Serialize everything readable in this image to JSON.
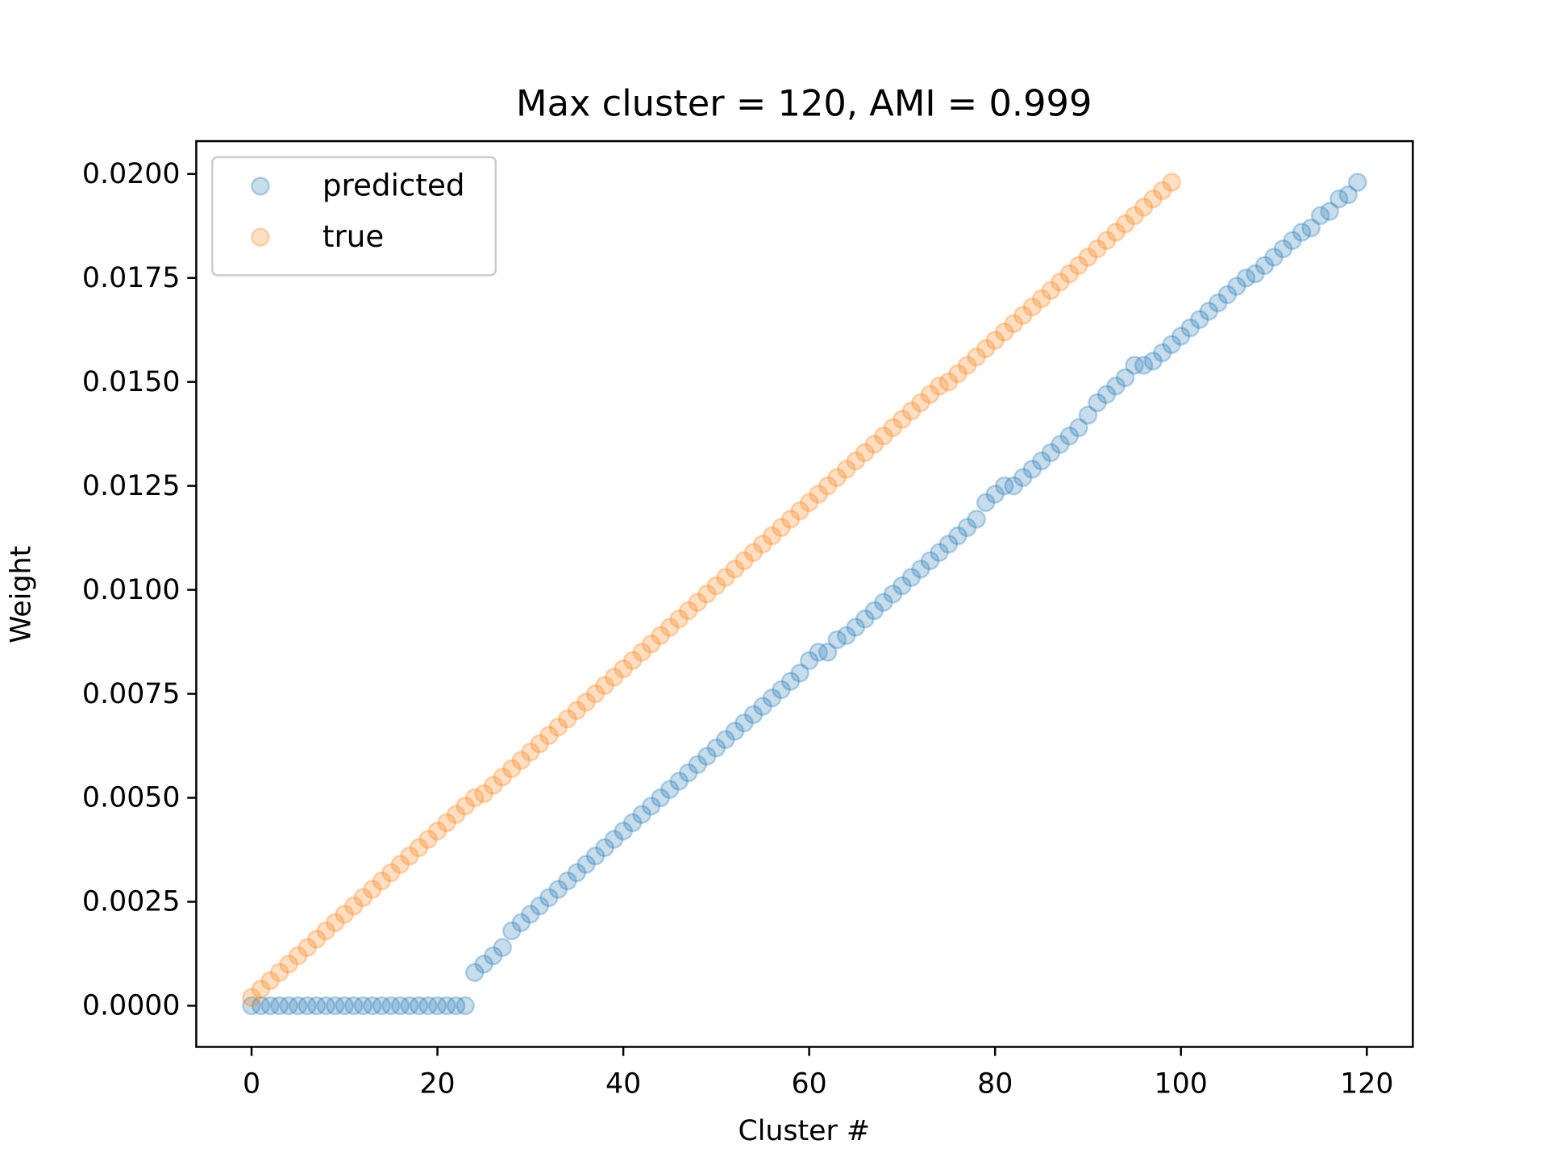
{
  "chart_data": {
    "type": "scatter",
    "title": "Max cluster = 120, AMI = 0.999",
    "x_label": "Cluster #",
    "y_label": "Weight",
    "xlim": [
      -5.95,
      124.95
    ],
    "ylim": [
      -0.00099,
      0.02079
    ],
    "xticks": [
      0,
      20,
      40,
      60,
      80,
      100,
      120
    ],
    "yticks": [
      {
        "value": 0,
        "label": "0.0000"
      },
      {
        "value": 0.0025,
        "label": "0.0025"
      },
      {
        "value": 0.005,
        "label": "0.0050"
      },
      {
        "value": 0.0075,
        "label": "0.0075"
      },
      {
        "value": 0.01,
        "label": "0.0100"
      },
      {
        "value": 0.0125,
        "label": "0.0125"
      },
      {
        "value": 0.015,
        "label": "0.0150"
      },
      {
        "value": 0.0175,
        "label": "0.0175"
      },
      {
        "value": 0.02,
        "label": "0.0200"
      }
    ],
    "grid": false,
    "legend": "upper left",
    "series": [
      {
        "name": "predicted",
        "color": "#1f77b4",
        "x": [
          0,
          1,
          2,
          3,
          4,
          5,
          6,
          7,
          8,
          9,
          10,
          11,
          12,
          13,
          14,
          15,
          16,
          17,
          18,
          19,
          20,
          21,
          22,
          23,
          24,
          25,
          26,
          27,
          28,
          29,
          30,
          31,
          32,
          33,
          34,
          35,
          36,
          37,
          38,
          39,
          40,
          41,
          42,
          43,
          44,
          45,
          46,
          47,
          48,
          49,
          50,
          51,
          52,
          53,
          54,
          55,
          56,
          57,
          58,
          59,
          60,
          61,
          62,
          63,
          64,
          65,
          66,
          67,
          68,
          69,
          70,
          71,
          72,
          73,
          74,
          75,
          76,
          77,
          78,
          79,
          80,
          81,
          82,
          83,
          84,
          85,
          86,
          87,
          88,
          89,
          90,
          91,
          92,
          93,
          94,
          95,
          96,
          97,
          98,
          99,
          100,
          101,
          102,
          103,
          104,
          105,
          106,
          107,
          108,
          109,
          110,
          111,
          112,
          113,
          114,
          115,
          116,
          117,
          118,
          119
        ],
        "values": [
          0,
          0,
          0,
          0,
          0,
          0,
          0,
          0,
          0,
          0,
          0,
          0,
          0,
          0,
          0,
          0,
          0,
          0,
          0,
          0,
          0,
          0,
          0,
          0,
          0.0008,
          0.001,
          0.0012,
          0.0014,
          0.0018,
          0.002,
          0.0022,
          0.0024,
          0.0026,
          0.0028,
          0.003,
          0.0032,
          0.0034,
          0.0036,
          0.0038,
          0.004,
          0.0042,
          0.0044,
          0.0046,
          0.0048,
          0.005,
          0.0052,
          0.0054,
          0.0056,
          0.0058,
          0.006,
          0.0062,
          0.0064,
          0.0066,
          0.0068,
          0.007,
          0.0072,
          0.0074,
          0.0076,
          0.0078,
          0.008,
          0.0083,
          0.0085,
          0.0085,
          0.0088,
          0.0089,
          0.0091,
          0.0093,
          0.0095,
          0.0097,
          0.0099,
          0.0101,
          0.0103,
          0.0105,
          0.0107,
          0.0109,
          0.0111,
          0.0113,
          0.0115,
          0.0117,
          0.0121,
          0.0123,
          0.0125,
          0.0125,
          0.0127,
          0.0129,
          0.0131,
          0.0133,
          0.0135,
          0.0137,
          0.0139,
          0.0142,
          0.0145,
          0.0147,
          0.0149,
          0.0151,
          0.0154,
          0.0154,
          0.0155,
          0.0157,
          0.0159,
          0.0161,
          0.0163,
          0.0165,
          0.0167,
          0.0169,
          0.0171,
          0.0173,
          0.0175,
          0.0176,
          0.0178,
          0.018,
          0.0182,
          0.0184,
          0.0186,
          0.0187,
          0.019,
          0.0191,
          0.0194,
          0.0195,
          0.0198
        ]
      },
      {
        "name": "true",
        "color": "#ff7f0e",
        "x": [
          0,
          1,
          2,
          3,
          4,
          5,
          6,
          7,
          8,
          9,
          10,
          11,
          12,
          13,
          14,
          15,
          16,
          17,
          18,
          19,
          20,
          21,
          22,
          23,
          24,
          25,
          26,
          27,
          28,
          29,
          30,
          31,
          32,
          33,
          34,
          35,
          36,
          37,
          38,
          39,
          40,
          41,
          42,
          43,
          44,
          45,
          46,
          47,
          48,
          49,
          50,
          51,
          52,
          53,
          54,
          55,
          56,
          57,
          58,
          59,
          60,
          61,
          62,
          63,
          64,
          65,
          66,
          67,
          68,
          69,
          70,
          71,
          72,
          73,
          74,
          75,
          76,
          77,
          78,
          79,
          80,
          81,
          82,
          83,
          84,
          85,
          86,
          87,
          88,
          89,
          90,
          91,
          92,
          93,
          94,
          95,
          96,
          97,
          98,
          99
        ],
        "values": [
          0.0002,
          0.0004,
          0.0006,
          0.0008,
          0.001,
          0.0012,
          0.0014,
          0.0016,
          0.0018,
          0.002,
          0.0022,
          0.0024,
          0.0026,
          0.0028,
          0.003,
          0.0032,
          0.0034,
          0.0036,
          0.0038,
          0.004,
          0.0042,
          0.0044,
          0.0046,
          0.0048,
          0.005,
          0.0051,
          0.0053,
          0.0055,
          0.0057,
          0.0059,
          0.0061,
          0.0063,
          0.0065,
          0.0067,
          0.0069,
          0.0071,
          0.0073,
          0.0075,
          0.0077,
          0.0079,
          0.0081,
          0.0083,
          0.0085,
          0.0087,
          0.0089,
          0.0091,
          0.0093,
          0.0095,
          0.0097,
          0.0099,
          0.0101,
          0.0103,
          0.0105,
          0.0107,
          0.0109,
          0.0111,
          0.0113,
          0.0115,
          0.0117,
          0.0119,
          0.0121,
          0.0123,
          0.0125,
          0.0127,
          0.0129,
          0.0131,
          0.0133,
          0.0135,
          0.0137,
          0.0139,
          0.0141,
          0.0143,
          0.0145,
          0.0147,
          0.0149,
          0.015,
          0.0152,
          0.0154,
          0.0156,
          0.0158,
          0.016,
          0.0162,
          0.0164,
          0.0166,
          0.0168,
          0.017,
          0.0172,
          0.0174,
          0.0176,
          0.0178,
          0.018,
          0.0182,
          0.0184,
          0.0186,
          0.0188,
          0.019,
          0.0192,
          0.0194,
          0.0196,
          0.0198
        ]
      }
    ]
  }
}
